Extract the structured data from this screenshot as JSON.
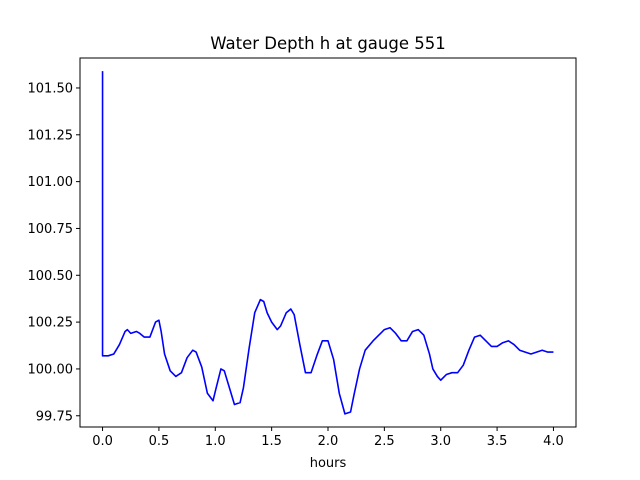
{
  "chart_data": {
    "type": "line",
    "title": "Water Depth h at gauge 551",
    "xlabel": "hours",
    "ylabel": "",
    "xlim": [
      -0.2,
      4.2
    ],
    "ylim": [
      99.69,
      101.66
    ],
    "x_ticks": [
      0.0,
      0.5,
      1.0,
      1.5,
      2.0,
      2.5,
      3.0,
      3.5,
      4.0
    ],
    "x_tick_labels": [
      "0.0",
      "0.5",
      "1.0",
      "1.5",
      "2.0",
      "2.5",
      "3.0",
      "3.5",
      "4.0"
    ],
    "y_ticks": [
      99.75,
      100.0,
      100.25,
      100.5,
      100.75,
      101.0,
      101.25,
      101.5
    ],
    "y_tick_labels": [
      "99.75",
      "100.00",
      "100.25",
      "100.50",
      "100.75",
      "101.00",
      "101.25",
      "101.50"
    ],
    "grid": false,
    "series": [
      {
        "color": "#0000ff",
        "x": [
          0.0,
          0.0,
          0.0,
          0.05,
          0.1,
          0.15,
          0.2,
          0.22,
          0.25,
          0.3,
          0.33,
          0.37,
          0.42,
          0.47,
          0.5,
          0.52,
          0.55,
          0.6,
          0.65,
          0.7,
          0.75,
          0.8,
          0.83,
          0.88,
          0.93,
          0.98,
          1.0,
          1.05,
          1.08,
          1.12,
          1.17,
          1.22,
          1.25,
          1.3,
          1.35,
          1.4,
          1.43,
          1.46,
          1.5,
          1.55,
          1.58,
          1.63,
          1.67,
          1.7,
          1.75,
          1.8,
          1.85,
          1.9,
          1.95,
          2.0,
          2.05,
          2.1,
          2.15,
          2.2,
          2.23,
          2.28,
          2.33,
          2.4,
          2.45,
          2.5,
          2.55,
          2.6,
          2.65,
          2.7,
          2.75,
          2.8,
          2.85,
          2.9,
          2.93,
          2.97,
          3.0,
          3.05,
          3.1,
          3.15,
          3.2,
          3.25,
          3.3,
          3.35,
          3.4,
          3.45,
          3.5,
          3.55,
          3.6,
          3.65,
          3.7,
          3.75,
          3.8,
          3.85,
          3.9,
          3.95,
          4.0
        ],
        "y": [
          101.59,
          101.5,
          100.07,
          100.07,
          100.08,
          100.13,
          100.2,
          100.21,
          100.19,
          100.2,
          100.19,
          100.17,
          100.17,
          100.25,
          100.26,
          100.2,
          100.08,
          99.99,
          99.96,
          99.98,
          100.06,
          100.1,
          100.09,
          100.01,
          99.87,
          99.83,
          99.88,
          100.0,
          99.99,
          99.91,
          99.81,
          99.82,
          99.9,
          100.11,
          100.3,
          100.37,
          100.36,
          100.3,
          100.25,
          100.21,
          100.23,
          100.3,
          100.32,
          100.29,
          100.13,
          99.98,
          99.98,
          100.07,
          100.15,
          100.15,
          100.05,
          99.87,
          99.76,
          99.77,
          99.86,
          100.0,
          100.1,
          100.15,
          100.18,
          100.21,
          100.22,
          100.19,
          100.15,
          100.15,
          100.2,
          100.21,
          100.18,
          100.08,
          100.0,
          99.96,
          99.94,
          99.97,
          99.98,
          99.98,
          100.02,
          100.1,
          100.17,
          100.18,
          100.15,
          100.12,
          100.12,
          100.14,
          100.15,
          100.13,
          100.1,
          100.09,
          100.08,
          100.09,
          100.1,
          100.09,
          100.09
        ]
      }
    ]
  }
}
